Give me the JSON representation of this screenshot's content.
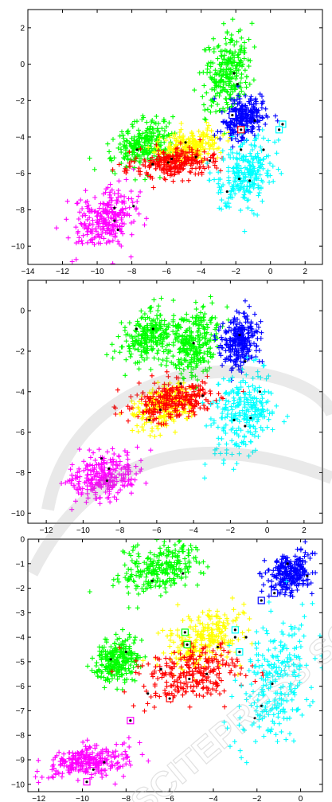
{
  "colors": {
    "magenta": "#ff00ff",
    "green": "#00ff00",
    "yellow": "#ffff00",
    "red": "#ff0000",
    "blue": "#0000ff",
    "cyan": "#00ffff",
    "centroid": "#000000"
  },
  "watermark_text": "SCITEPRESS SCIENCE AND TECHNOLOGY PUBLICATIONS",
  "chart_data": [
    {
      "type": "scatter",
      "marker": "plus",
      "xlim": [
        -14,
        3
      ],
      "ylim": [
        -11,
        3
      ],
      "xticks": [
        -14,
        -12,
        -10,
        -8,
        -6,
        -4,
        -2,
        0,
        2
      ],
      "yticks": [
        2,
        0,
        -2,
        -4,
        -6,
        -8,
        -10
      ],
      "clusters": [
        {
          "color": "magenta",
          "center": [
            -9.5,
            -8.5
          ],
          "spread": [
            1.4,
            1.3
          ],
          "centroids": [
            [
              -9.0,
              -7.9
            ],
            [
              -9.0,
              -8.6
            ],
            [
              -7.9,
              -7.8
            ],
            [
              -8.8,
              -9.1
            ]
          ]
        },
        {
          "color": "green",
          "center": [
            -7.3,
            -4.5
          ],
          "spread": [
            1.3,
            1.0
          ],
          "centroids": [
            [
              -6.8,
              -5.5
            ],
            [
              -5.7,
              -5.2
            ],
            [
              -7.7,
              -4.7
            ]
          ]
        },
        {
          "color": "green",
          "center": [
            -2.5,
            -0.5
          ],
          "spread": [
            1.0,
            1.6
          ],
          "centroids": [
            [
              -2.1,
              -0.5
            ],
            [
              -1.9,
              -1.1
            ]
          ]
        },
        {
          "color": "yellow",
          "center": [
            -4.8,
            -4.6
          ],
          "spread": [
            1.3,
            0.7
          ],
          "centroids": [
            [
              -4.9,
              -4.3
            ],
            [
              -4.3,
              -5.1
            ]
          ]
        },
        {
          "color": "red",
          "center": [
            -5.5,
            -5.4
          ],
          "spread": [
            1.9,
            0.6
          ],
          "centroids": [
            [
              -5.9,
              -5.4
            ],
            [
              -3.5,
              -5.3
            ]
          ]
        },
        {
          "color": "blue",
          "center": [
            -1.6,
            -3.0
          ],
          "spread": [
            0.9,
            0.9
          ],
          "centroids": [
            [
              -2.1,
              -2.8
            ],
            [
              -0.9,
              -3.1
            ]
          ]
        },
        {
          "color": "cyan",
          "center": [
            -1.4,
            -6.0
          ],
          "spread": [
            1.3,
            1.5
          ],
          "centroids": [
            [
              -1.7,
              -4.7
            ],
            [
              -1.2,
              -6.4
            ],
            [
              -1.8,
              -6.3
            ],
            [
              -2.5,
              -7.0
            ],
            [
              -0.4,
              -4.7
            ]
          ]
        }
      ],
      "boxed_points": [
        {
          "color": "blue",
          "x": -2.2,
          "y": -2.8
        },
        {
          "color": "red",
          "x": -1.7,
          "y": -3.6
        },
        {
          "color": "cyan",
          "x": 0.7,
          "y": -3.3
        },
        {
          "color": "cyan",
          "x": 0.5,
          "y": -3.6
        }
      ]
    },
    {
      "type": "scatter",
      "marker": "plus",
      "xlim": [
        -13,
        3
      ],
      "ylim": [
        -10.5,
        1.5
      ],
      "xticks": [
        -12,
        -10,
        -8,
        -6,
        -4,
        -2,
        0,
        2
      ],
      "yticks": [
        0,
        -2,
        -4,
        -6,
        -8,
        -10
      ],
      "clusters": [
        {
          "color": "magenta",
          "center": [
            -8.9,
            -8.2
          ],
          "spread": [
            1.3,
            0.9
          ],
          "centroids": [
            [
              -9.0,
              -7.3
            ],
            [
              -8.6,
              -7.8
            ],
            [
              -8.7,
              -8.4
            ]
          ]
        },
        {
          "color": "green",
          "center": [
            -6.4,
            -1.3
          ],
          "spread": [
            1.2,
            1.0
          ],
          "centroids": [
            [
              -7.1,
              -0.9
            ],
            [
              -6.2,
              -0.9
            ]
          ]
        },
        {
          "color": "green",
          "center": [
            -3.9,
            -1.6
          ],
          "spread": [
            0.9,
            1.3
          ],
          "centroids": [
            [
              -4.0,
              -1.6
            ]
          ]
        },
        {
          "color": "yellow",
          "center": [
            -5.6,
            -4.8
          ],
          "spread": [
            1.2,
            0.8
          ],
          "centroids": [
            [
              -5.8,
              -4.9
            ],
            [
              -6.4,
              -5.4
            ]
          ]
        },
        {
          "color": "red",
          "center": [
            -5.0,
            -4.4
          ],
          "spread": [
            1.8,
            0.8
          ],
          "centroids": [
            [
              -4.7,
              -3.6
            ],
            [
              -3.5,
              -4.2
            ]
          ]
        },
        {
          "color": "blue",
          "center": [
            -1.5,
            -1.6
          ],
          "spread": [
            0.8,
            1.0
          ],
          "centroids": [
            [
              -1.5,
              -1.2
            ],
            [
              -1.2,
              -2.5
            ]
          ]
        },
        {
          "color": "cyan",
          "center": [
            -1.3,
            -5.0
          ],
          "spread": [
            1.3,
            1.5
          ],
          "centroids": [
            [
              -1.8,
              -5.4
            ],
            [
              -0.9,
              -5.3
            ],
            [
              -0.4,
              -4.0
            ],
            [
              -1.2,
              -5.7
            ]
          ]
        }
      ],
      "boxed_points": []
    },
    {
      "type": "scatter",
      "marker": "plus",
      "xlim": [
        -12.5,
        1
      ],
      "ylim": [
        -10.3,
        0
      ],
      "xticks": [
        -12,
        -10,
        -8,
        -6,
        -4,
        -2,
        0
      ],
      "yticks": [
        0,
        -1,
        -2,
        -3,
        -4,
        -5,
        -6,
        -7,
        -8,
        -9,
        -10
      ],
      "clusters": [
        {
          "color": "magenta",
          "center": [
            -9.8,
            -9.1
          ],
          "spread": [
            1.4,
            0.5
          ],
          "centroids": [
            [
              -9.5,
              -9.4
            ],
            [
              -9.0,
              -9.1
            ]
          ]
        },
        {
          "color": "green",
          "center": [
            -6.5,
            -1.2
          ],
          "spread": [
            1.4,
            0.8
          ],
          "centroids": [
            [
              -6.8,
              -1.7
            ],
            [
              -5.4,
              -1.4
            ]
          ]
        },
        {
          "color": "green",
          "center": [
            -8.4,
            -4.9
          ],
          "spread": [
            0.8,
            0.7
          ],
          "centroids": [
            [
              -8.7,
              -4.9
            ],
            [
              -8.0,
              -4.6
            ]
          ]
        },
        {
          "color": "yellow",
          "center": [
            -4.5,
            -4.1
          ],
          "spread": [
            1.4,
            0.9
          ],
          "centroids": [
            [
              -3.8,
              -4.4
            ],
            [
              -3.0,
              -4.0
            ],
            [
              -7.0,
              -6.3
            ]
          ]
        },
        {
          "color": "red",
          "center": [
            -5.0,
            -5.5
          ],
          "spread": [
            1.8,
            0.9
          ],
          "centroids": [
            [
              -6.4,
              -5.3
            ],
            [
              -4.3,
              -5.5
            ],
            [
              -6.1,
              -6.4
            ]
          ]
        },
        {
          "color": "blue",
          "center": [
            -0.5,
            -1.4
          ],
          "spread": [
            0.8,
            0.6
          ],
          "centroids": [
            [
              -0.6,
              -1.0
            ],
            [
              0.3,
              -1.5
            ]
          ]
        },
        {
          "color": "cyan",
          "center": [
            -1.2,
            -5.8
          ],
          "spread": [
            1.3,
            2.0
          ],
          "centroids": [
            [
              -2.5,
              -4.0
            ],
            [
              -1.3,
              -5.9
            ],
            [
              -1.8,
              -6.8
            ],
            [
              -2.1,
              -7.3
            ]
          ]
        }
      ],
      "boxed_points": [
        {
          "color": "magenta",
          "x": -7.8,
          "y": -7.4
        },
        {
          "color": "magenta",
          "x": -9.8,
          "y": -9.9
        },
        {
          "color": "green",
          "x": -5.2,
          "y": -4.3
        },
        {
          "color": "green",
          "x": -5.3,
          "y": -3.8
        },
        {
          "color": "red",
          "x": -6.0,
          "y": -6.5
        },
        {
          "color": "red",
          "x": -5.1,
          "y": -5.7
        },
        {
          "color": "blue",
          "x": -1.2,
          "y": -2.2
        },
        {
          "color": "blue",
          "x": -1.8,
          "y": -2.5
        },
        {
          "color": "cyan",
          "x": -2.8,
          "y": -4.6
        },
        {
          "color": "cyan",
          "x": -3.0,
          "y": -3.7
        }
      ]
    }
  ]
}
